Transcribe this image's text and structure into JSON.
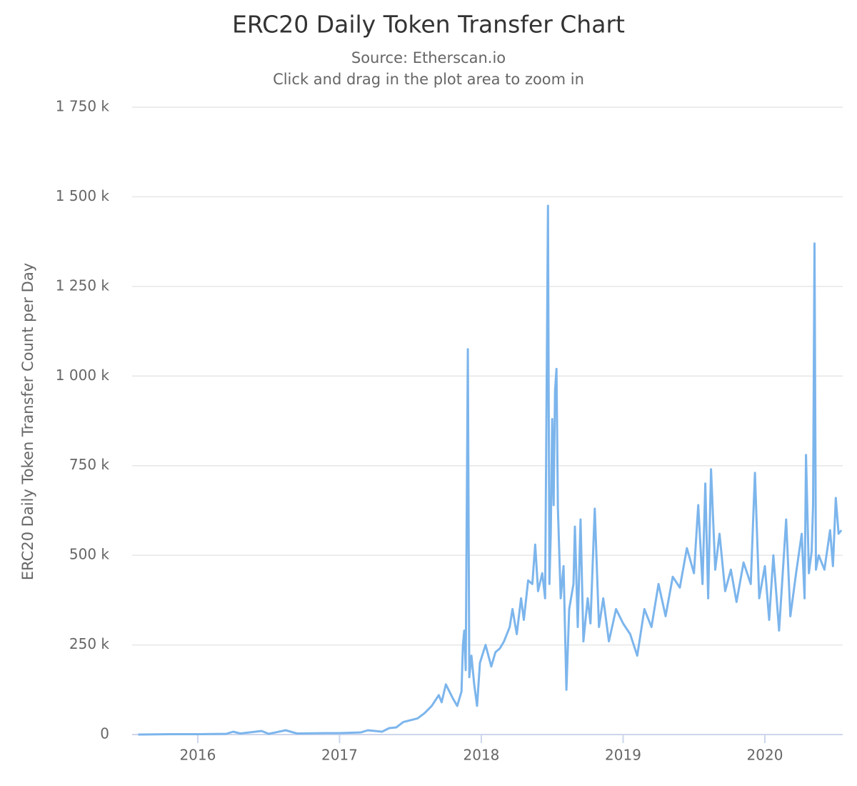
{
  "chart_data": {
    "type": "line",
    "title": "ERC20 Daily Token Transfer Chart",
    "subtitle": [
      "Source: Etherscan.io",
      "Click and drag in the plot area to zoom in"
    ],
    "y_label": "ERC20 Daily Token Transfer Count per Day",
    "xlim": [
      2015.537,
      2020.549
    ],
    "xticks": [
      2016,
      2017,
      2018,
      2019,
      2020
    ],
    "ylim": [
      0,
      1750
    ],
    "yticks": [
      0,
      {
        "value": 250,
        "label": "250 k"
      },
      {
        "value": 500,
        "label": "500 k"
      },
      {
        "value": 750,
        "label": "750 k"
      },
      {
        "value": 1000,
        "label": "1 000 k"
      },
      {
        "value": 1250,
        "label": "1 250 k"
      },
      {
        "value": 1500,
        "label": "1 500 k"
      },
      {
        "value": 1750,
        "label": "1 750 k"
      }
    ],
    "grid": true,
    "x": [
      2015.58,
      2015.8,
      2016.0,
      2016.2,
      2016.25,
      2016.3,
      2016.45,
      2016.5,
      2016.62,
      2016.7,
      2016.9,
      2017.0,
      2017.15,
      2017.2,
      2017.3,
      2017.35,
      2017.4,
      2017.45,
      2017.5,
      2017.55,
      2017.6,
      2017.65,
      2017.7,
      2017.72,
      2017.75,
      2017.8,
      2017.83,
      2017.86,
      2017.87,
      2017.88,
      2017.89,
      2017.905,
      2017.915,
      2017.93,
      2017.95,
      2017.97,
      2017.99,
      2018.03,
      2018.07,
      2018.1,
      2018.13,
      2018.16,
      2018.2,
      2018.22,
      2018.25,
      2018.28,
      2018.3,
      2018.33,
      2018.36,
      2018.38,
      2018.4,
      2018.43,
      2018.45,
      2018.47,
      2018.48,
      2018.49,
      2018.5,
      2018.51,
      2018.52,
      2018.53,
      2018.54,
      2018.56,
      2018.58,
      2018.6,
      2018.62,
      2018.65,
      2018.66,
      2018.68,
      2018.7,
      2018.72,
      2018.75,
      2018.77,
      2018.8,
      2018.83,
      2018.86,
      2018.9,
      2018.95,
      2019.0,
      2019.05,
      2019.1,
      2019.15,
      2019.2,
      2019.25,
      2019.3,
      2019.35,
      2019.4,
      2019.45,
      2019.5,
      2019.53,
      2019.56,
      2019.58,
      2019.6,
      2019.62,
      2019.65,
      2019.68,
      2019.72,
      2019.76,
      2019.8,
      2019.85,
      2019.9,
      2019.93,
      2019.96,
      2020.0,
      2020.03,
      2020.06,
      2020.1,
      2020.15,
      2020.18,
      2020.22,
      2020.26,
      2020.28,
      2020.29,
      2020.31,
      2020.33,
      2020.34,
      2020.35,
      2020.36,
      2020.38,
      2020.42,
      2020.46,
      2020.48,
      2020.5,
      2020.52,
      2020.54
    ],
    "series": [
      {
        "color": "#7cb5ec",
        "values": [
          0,
          1,
          1,
          2,
          8,
          3,
          10,
          2,
          12,
          3,
          4,
          4,
          6,
          12,
          8,
          18,
          20,
          35,
          40,
          45,
          60,
          80,
          110,
          90,
          140,
          100,
          80,
          120,
          250,
          290,
          180,
          1075,
          160,
          220,
          140,
          80,
          200,
          250,
          190,
          230,
          240,
          260,
          300,
          350,
          280,
          380,
          320,
          430,
          420,
          530,
          400,
          450,
          380,
          1475,
          420,
          560,
          880,
          640,
          960,
          1020,
          630,
          380,
          470,
          125,
          350,
          420,
          580,
          300,
          600,
          260,
          380,
          310,
          630,
          300,
          380,
          260,
          350,
          310,
          280,
          220,
          350,
          300,
          420,
          330,
          440,
          410,
          520,
          450,
          640,
          420,
          700,
          380,
          740,
          460,
          560,
          400,
          460,
          370,
          480,
          420,
          730,
          380,
          470,
          320,
          500,
          290,
          600,
          330,
          450,
          560,
          380,
          780,
          450,
          510,
          640,
          1370,
          460,
          500,
          460,
          570,
          470,
          660,
          560,
          570
        ]
      }
    ]
  }
}
